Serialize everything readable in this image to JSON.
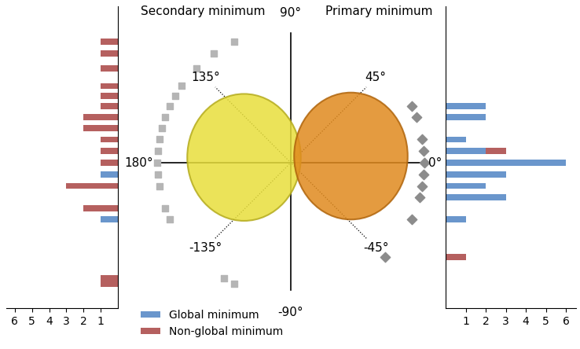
{
  "diagram": {
    "angle_labels": [
      {
        "value": 90,
        "label": "90°"
      },
      {
        "value": 45,
        "label": "45°"
      },
      {
        "value": 0,
        "label": "0°"
      },
      {
        "value": -45,
        "label": "-45°"
      },
      {
        "value": -90,
        "label": "-90°"
      },
      {
        "value": -135,
        "label": "-135°"
      },
      {
        "value": 180,
        "label": "180°"
      },
      {
        "value": 135,
        "label": "135°"
      }
    ]
  },
  "chart_data": [
    {
      "type": "bar",
      "title": "Secondary minimum",
      "orientation": "horizontal",
      "stacked": true,
      "marker": "square",
      "color": "#b5b5b5",
      "angles": [
        115,
        125,
        135,
        145,
        150,
        155,
        160,
        165,
        170,
        175,
        180,
        -175,
        -170,
        -160,
        -155,
        -120,
        -115
      ],
      "series": [
        {
          "name": "Global minimum",
          "color": "#6a96cc",
          "values": [
            0,
            0,
            0,
            0,
            0,
            0,
            0,
            0,
            0,
            0,
            0,
            1,
            0,
            0,
            1,
            0,
            0
          ]
        },
        {
          "name": "Non-global minimum",
          "color": "#b5605f",
          "values": [
            1,
            1,
            1,
            1,
            1,
            1,
            2,
            2,
            1,
            1,
            1,
            0,
            3,
            2,
            0,
            1,
            1
          ]
        }
      ],
      "xlim": [
        6.5,
        0
      ],
      "xticks": [
        1,
        2,
        3,
        4,
        5,
        6
      ],
      "tick_labels": "x"
    },
    {
      "type": "bar",
      "title": "Primary minimum",
      "orientation": "horizontal",
      "stacked": true,
      "marker": "diamond",
      "color": "#8c8c8c",
      "legend": "lower left",
      "angles": [
        25,
        20,
        10,
        5,
        0,
        -5,
        -10,
        -15,
        -25,
        -45
      ],
      "series": [
        {
          "name": "Global minimum",
          "color": "#6a96cc",
          "values": [
            2,
            2,
            1,
            2,
            6,
            3,
            2,
            3,
            1,
            0
          ]
        },
        {
          "name": "Non-global minimum",
          "color": "#b5605f",
          "values": [
            0,
            0,
            0,
            1,
            0,
            0,
            0,
            0,
            0,
            1
          ]
        }
      ],
      "xlim": [
        0,
        6.5
      ],
      "xticks": [
        1,
        2,
        3,
        4,
        5,
        6
      ],
      "tick_labels": "x"
    }
  ]
}
